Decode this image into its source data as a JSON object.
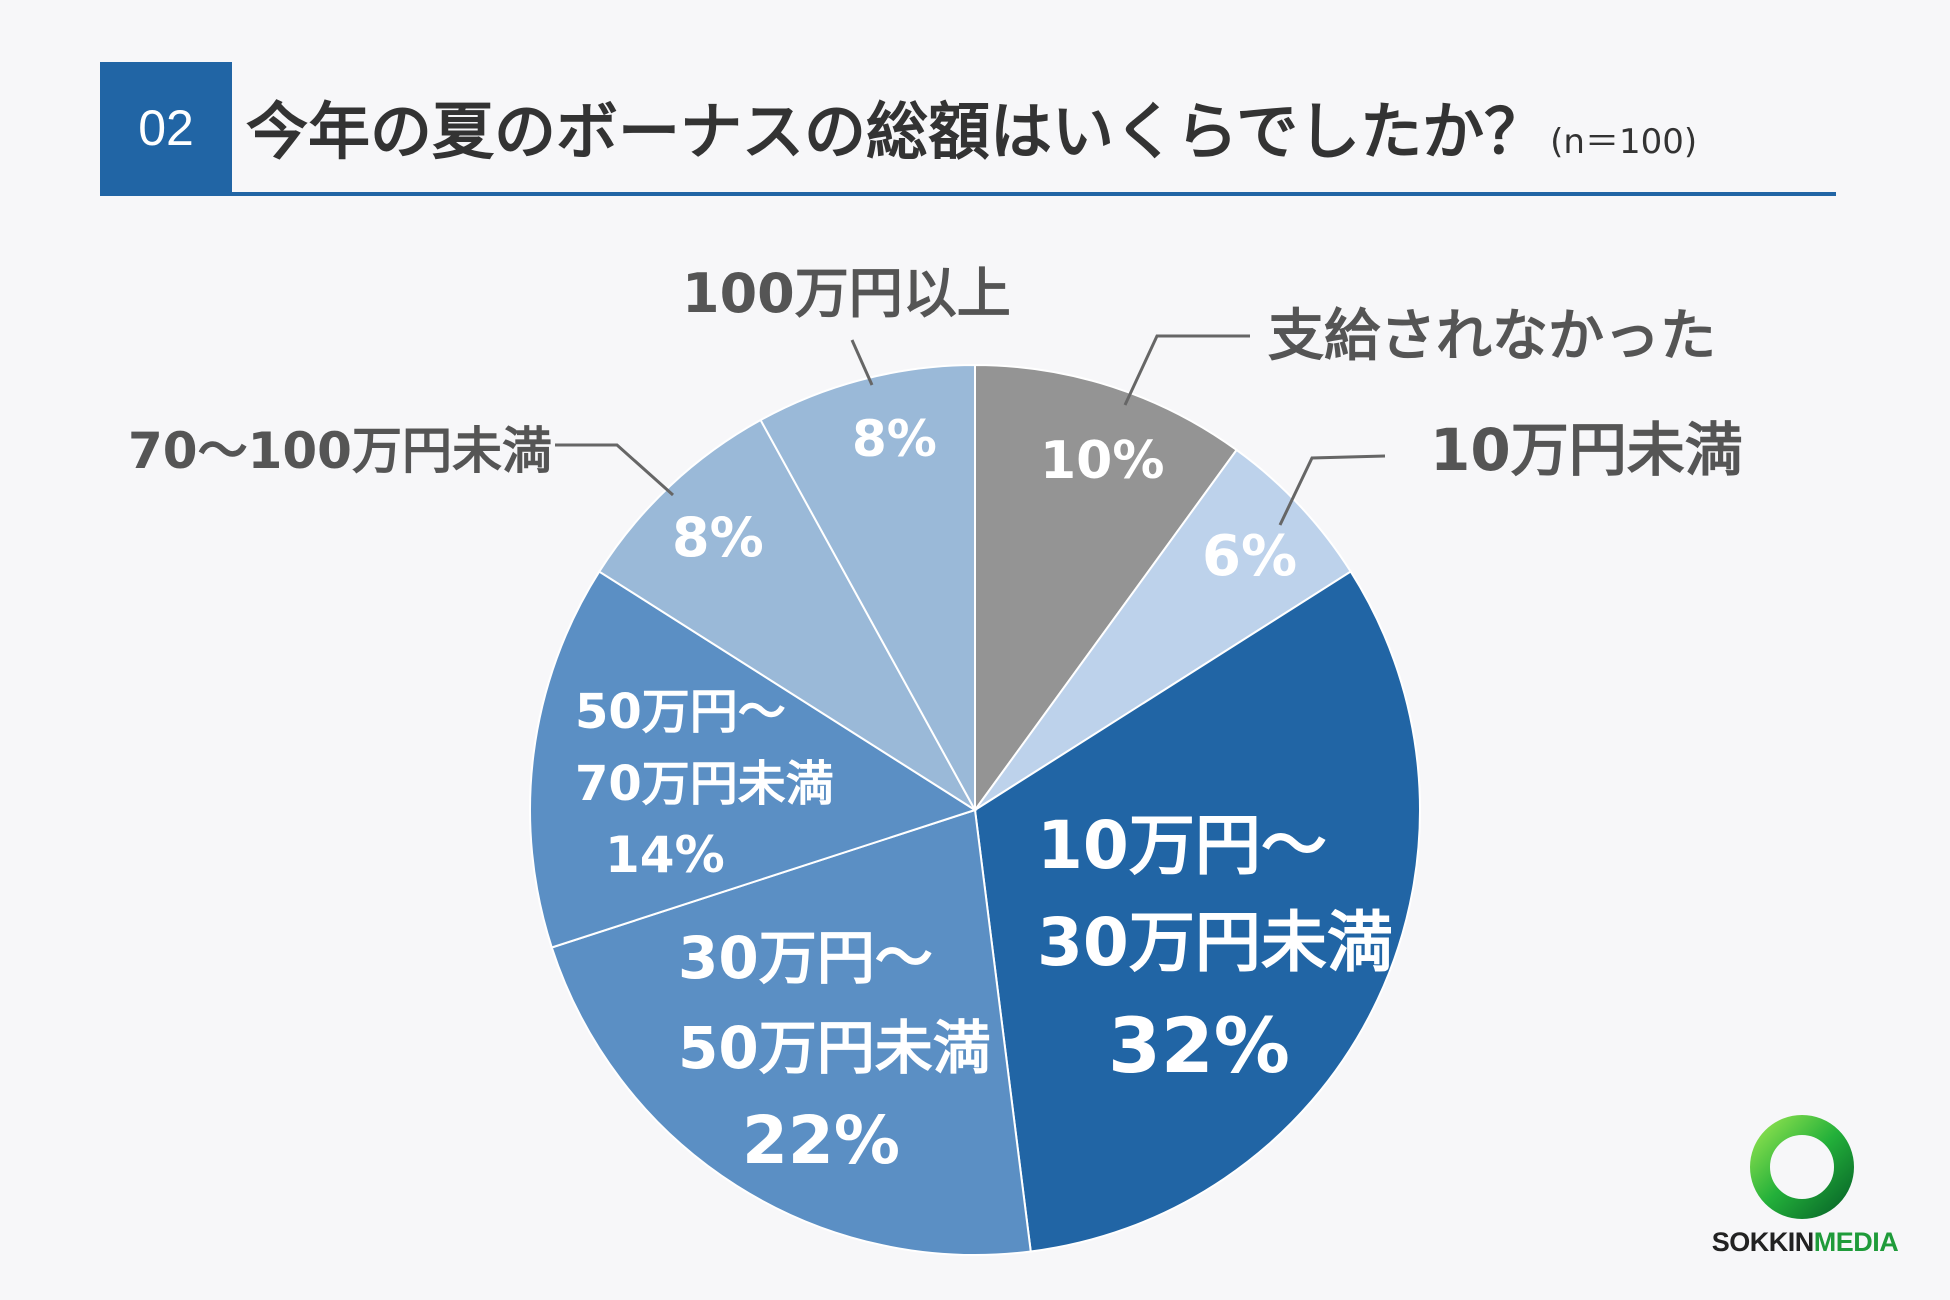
{
  "header": {
    "number": "02",
    "title": "今年の夏のボーナスの総額はいくらでしたか？",
    "sample": "(n＝100)"
  },
  "chart_data": {
    "type": "pie",
    "title": "今年の夏のボーナスの総額はいくらでしたか？",
    "unit": "%",
    "slices": [
      {
        "label": "支給されなかった",
        "value": 10,
        "color": "#949494"
      },
      {
        "label": "10万円未満",
        "value": 6,
        "color": "#bdd2eb"
      },
      {
        "label": "10万円〜30万円未満",
        "value": 32,
        "color": "#2165a5"
      },
      {
        "label": "30万円〜50万円未満",
        "value": 22,
        "color": "#5b8fc4"
      },
      {
        "label": "50万円〜70万円未満",
        "value": 14,
        "color": "#5b8fc4"
      },
      {
        "label": "70〜100万円未満",
        "value": 8,
        "color": "#9ab9d8"
      },
      {
        "label": "100万円以上",
        "value": 8,
        "color": "#9ab9d8"
      }
    ]
  },
  "labels": {
    "none": {
      "name": "支給されなかった",
      "pct": "10%"
    },
    "u10": {
      "name": "10万円未満",
      "pct": "6%"
    },
    "r10_30": {
      "line1": "10万円〜",
      "line2": "30万円未満",
      "pct": "32%"
    },
    "r30_50": {
      "line1": "30万円〜",
      "line2": "50万円未満",
      "pct": "22%"
    },
    "r50_70": {
      "line1": "50万円〜",
      "line2": "70万円未満",
      "pct": "14%"
    },
    "r70_100": {
      "name": "70〜100万円未満",
      "pct": "8%"
    },
    "o100": {
      "name": "100万円以上",
      "pct": "8%"
    }
  },
  "logo": {
    "word1": "SOKKIN",
    "word2": "MEDIA"
  }
}
